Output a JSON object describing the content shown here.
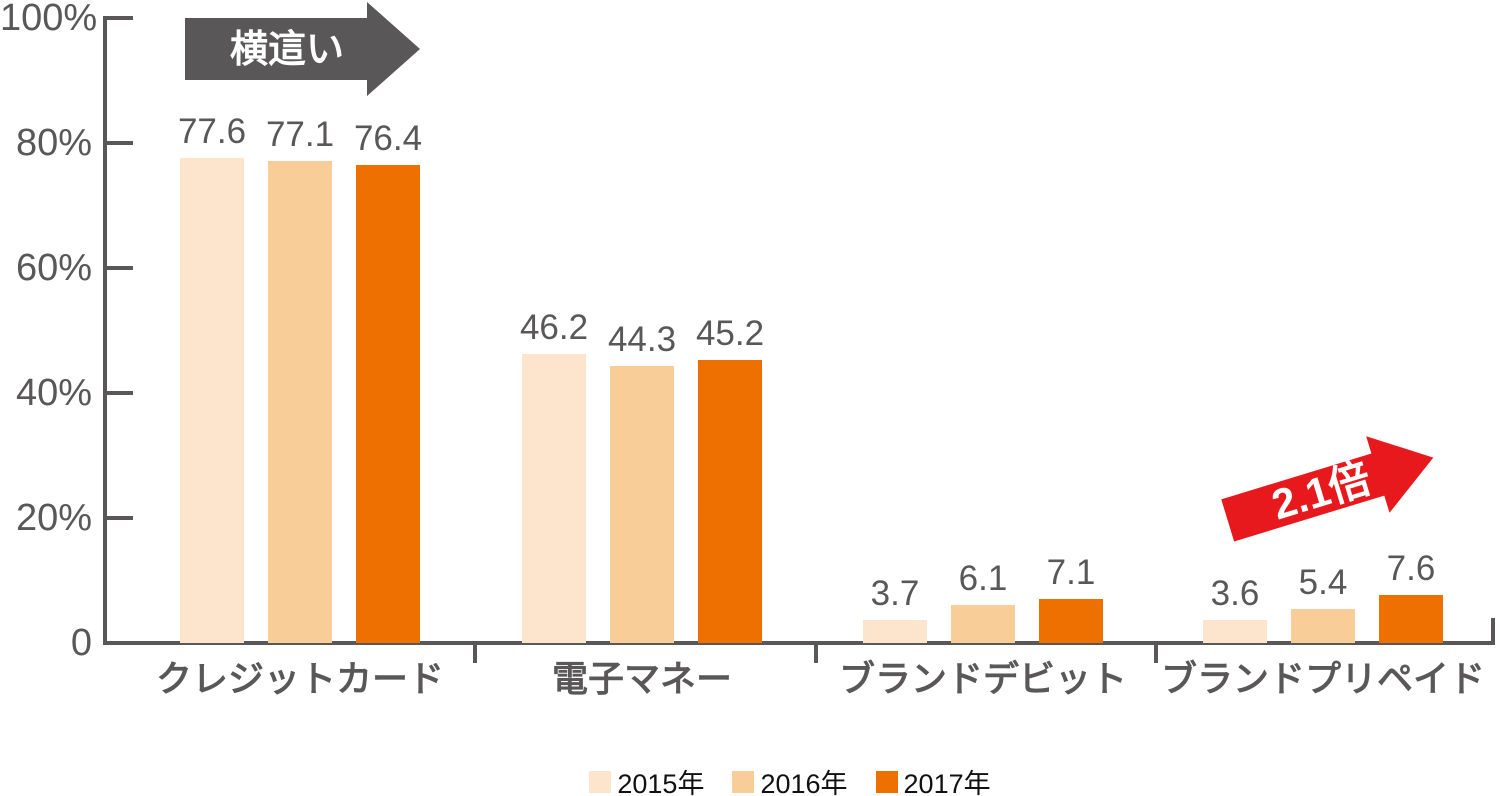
{
  "chart_data": {
    "type": "bar",
    "title": "",
    "categories": [
      "クレジットカード",
      "電子マネー",
      "ブランドデビット",
      "ブランドプリペイド"
    ],
    "series": [
      {
        "name": "2015年",
        "color": "#FCE5CC",
        "values": [
          77.6,
          46.2,
          3.7,
          3.6
        ]
      },
      {
        "name": "2016年",
        "color": "#F9CD98",
        "values": [
          77.1,
          44.3,
          6.1,
          5.4
        ]
      },
      {
        "name": "2017年",
        "color": "#ED7000",
        "values": [
          76.4,
          45.2,
          7.1,
          7.6
        ]
      }
    ],
    "yticks": [
      "100%",
      "80%",
      "60%",
      "40%",
      "20%",
      "0"
    ],
    "ytick_values": [
      100,
      80,
      60,
      40,
      20,
      0
    ],
    "ylim": [
      0,
      100
    ],
    "xlabel": "",
    "ylabel": "",
    "unit": "%",
    "value_labels": true,
    "grid": false,
    "legend_position": "bottom",
    "axis_color": "#595757",
    "label_color": "#595757",
    "legend_text_color": "#111111",
    "annotations": [
      {
        "text": "横這い",
        "type": "arrow-right",
        "color": "#595757",
        "text_color": "#FFFFFF",
        "target": "クレジットカード"
      },
      {
        "text": "2.1倍",
        "type": "arrow-up-right",
        "color": "#E8191C",
        "text_color": "#FFFFFF",
        "target": "ブランドプリペイド"
      }
    ]
  }
}
